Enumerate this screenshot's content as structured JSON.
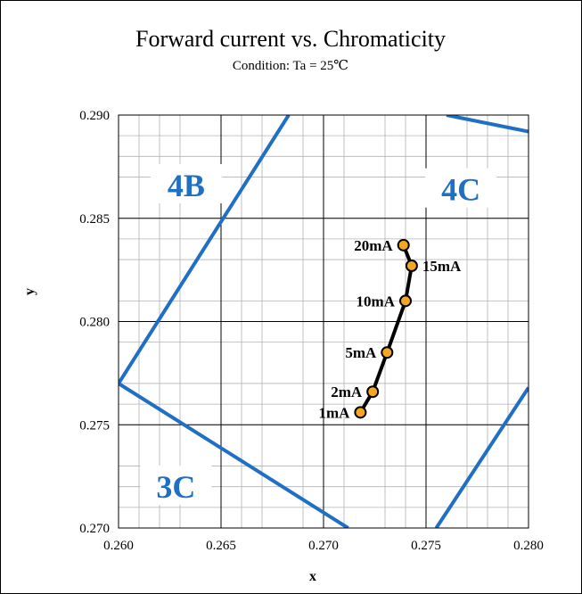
{
  "chart_data": {
    "type": "scatter",
    "title": "Forward current vs. Chromaticity",
    "subtitle": "Condition: Ta = 25℃",
    "xlabel": "x",
    "ylabel": "y",
    "xlim": [
      0.26,
      0.28
    ],
    "ylim": [
      0.27,
      0.29
    ],
    "xticks": [
      "0.260",
      "0.265",
      "0.270",
      "0.275",
      "0.280"
    ],
    "yticks": [
      "0.270",
      "0.275",
      "0.280",
      "0.285",
      "0.290"
    ],
    "grid": true,
    "series": [
      {
        "points": [
          {
            "label": "1mA",
            "x": 0.2718,
            "y": 0.2756
          },
          {
            "label": "2mA",
            "x": 0.2724,
            "y": 0.2766
          },
          {
            "label": "5mA",
            "x": 0.2731,
            "y": 0.2785
          },
          {
            "label": "10mA",
            "x": 0.274,
            "y": 0.281
          },
          {
            "label": "15mA",
            "x": 0.2743,
            "y": 0.2827
          },
          {
            "label": "20mA",
            "x": 0.2739,
            "y": 0.2837
          }
        ]
      }
    ],
    "regions": [
      {
        "label": "4B",
        "x": 0.2633,
        "y": 0.2865
      },
      {
        "label": "4C",
        "x": 0.2767,
        "y": 0.2863
      },
      {
        "label": "3C",
        "x": 0.2628,
        "y": 0.2719
      }
    ],
    "boundaries": [
      [
        [
          0.2683,
          0.29
        ],
        [
          0.26,
          0.277
        ]
      ],
      [
        [
          0.26,
          0.277
        ],
        [
          0.2712,
          0.27
        ]
      ],
      [
        [
          0.276,
          0.29
        ],
        [
          0.28,
          0.2892
        ]
      ],
      [
        [
          0.2755,
          0.27
        ],
        [
          0.28,
          0.2768
        ]
      ]
    ],
    "colors": {
      "boundary": "#1f6fc4",
      "region_label": "#1f6fc4",
      "series_line": "#000000",
      "marker_fill": "#f5a623",
      "marker_stroke": "#000000",
      "grid_major": "#000000",
      "grid_minor": "#b3b3b3"
    }
  }
}
